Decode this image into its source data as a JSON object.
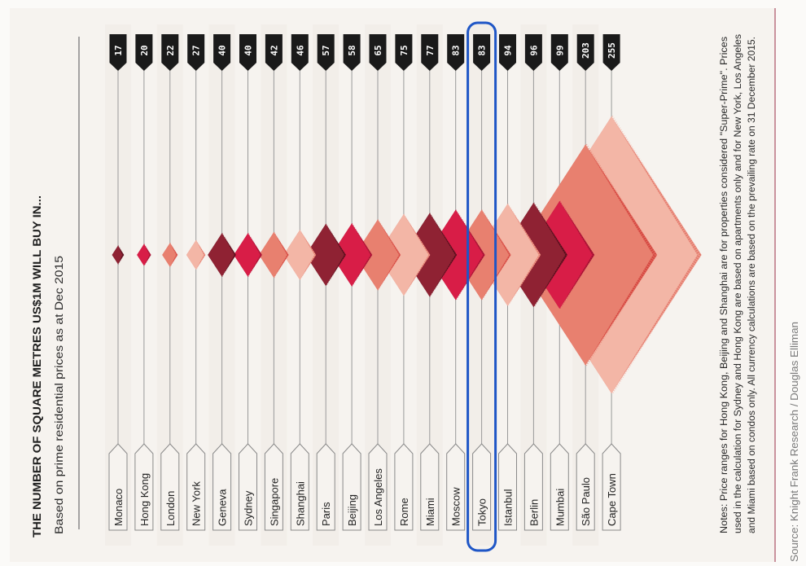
{
  "chart_data": {
    "type": "bar",
    "title": "THE NUMBER OF SQUARE METRES US$1M WILL BUY IN...",
    "subtitle": "Based on prime residential prices as at Dec 2015",
    "categories": [
      "Monaco",
      "Hong Kong",
      "London",
      "New York",
      "Geneva",
      "Sydney",
      "Singapore",
      "Shanghai",
      "Paris",
      "Beijing",
      "Los Angeles",
      "Rome",
      "Miami",
      "Moscow",
      "Tokyo",
      "Istanbul",
      "Berlin",
      "Mumbai",
      "São Paulo",
      "Cape Town"
    ],
    "values": [
      17,
      20,
      22,
      27,
      40,
      40,
      42,
      46,
      57,
      58,
      65,
      75,
      77,
      83,
      83,
      94,
      96,
      99,
      203,
      255
    ],
    "value_labels": [
      "17",
      "20",
      "22",
      "27",
      "40",
      "40",
      "42",
      "46",
      "57",
      "58",
      "65",
      "75",
      "77",
      "83",
      "83",
      "94",
      "96",
      "99",
      "203",
      "255"
    ],
    "unit": "square metres",
    "highlighted": "Tokyo",
    "palette": [
      "#8f2233",
      "#d81d47",
      "#e8806f",
      "#f3b6a6"
    ],
    "edge_palette": [
      "#4e0d19",
      "#9c1230",
      "#d5453f",
      "#e47b6d"
    ],
    "highlight_color": "#1f56c6",
    "notes": [
      "Notes: Price ranges for Hong Kong, Beijing and Shanghai are for properties considered \"Super-Prime\". Prices",
      "used in the calculation for Sydney and Hong Kong are based on apartments only and for New York, Los Angeles",
      "and Miami based on condos only. All currency calculations are based on the prevailing rate on 31 December 2015."
    ],
    "source": "Source:  Knight Frank Research / Douglas Elliman"
  }
}
